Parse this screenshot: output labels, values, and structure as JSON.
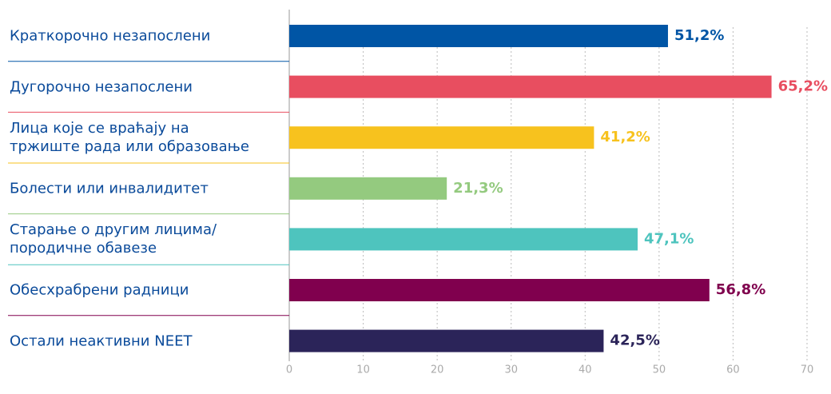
{
  "chart_data": {
    "type": "bar",
    "orientation": "horizontal",
    "categories": [
      "Краткорочно незапослени",
      "Дугорочно незапослени",
      "Лица које се враћају на\nтржиште рада или образовање",
      "Болести или инвалидитет",
      "Старање о другим лицима/\nпородичне обавезе",
      "Обесхрабрени радници",
      "Остали неактивни NEET"
    ],
    "values": [
      51.2,
      65.2,
      41.2,
      21.3,
      47.1,
      56.8,
      42.5
    ],
    "value_labels": [
      "51,2%",
      "65,2%",
      "41,2%",
      "21,3%",
      "47,1%",
      "56,8%",
      "42,5%"
    ],
    "colors": [
      "#0055a5",
      "#e84e60",
      "#f7c21e",
      "#94ca7f",
      "#4ec4be",
      "#80004e",
      "#2b2459"
    ],
    "xlim": [
      0,
      70
    ],
    "xticks": [
      0,
      10,
      20,
      30,
      40,
      50,
      60,
      70
    ],
    "grid": true
  }
}
